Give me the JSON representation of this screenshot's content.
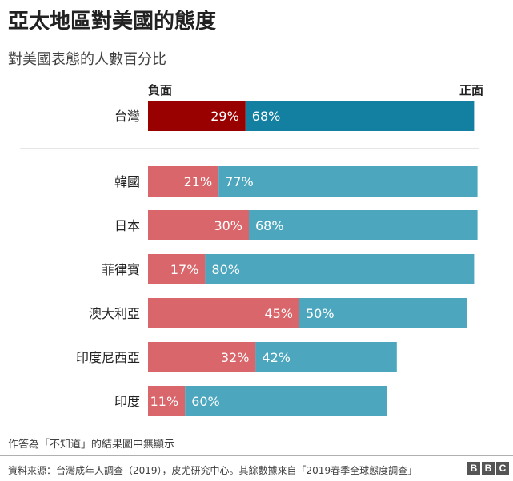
{
  "title": "亞太地區對美國的態度",
  "subtitle": "對美國表態的人數百分比",
  "note": "作答為「不知道」的結果圖中無顯示",
  "source": "資料來源：台灣成年人調查（2019），皮尤研究中心。其餘數據來自「2019春季全球態度調查」",
  "logo": [
    "B",
    "B",
    "C"
  ],
  "colors": {
    "featured_negative": "#990000",
    "featured_positive": "#1380A1",
    "negative": "#D9666A",
    "positive": "#4BA6BE"
  },
  "chart_data": {
    "type": "bar",
    "orientation": "horizontal",
    "stacked": true,
    "header_labels": {
      "negative": "負面",
      "positive": "正面"
    },
    "series": [
      {
        "name": "負面",
        "key": "negative"
      },
      {
        "name": "正面",
        "key": "positive"
      }
    ],
    "featured": {
      "category": "台灣",
      "negative": 29,
      "positive": 68
    },
    "categories": [
      "韓國",
      "日本",
      "菲律賓",
      "澳大利亞",
      "印度尼西亞",
      "印度"
    ],
    "negative": [
      21,
      30,
      17,
      45,
      32,
      11
    ],
    "positive": [
      77,
      68,
      80,
      50,
      42,
      60
    ],
    "value_suffix": "%",
    "xlim": [
      0,
      100
    ]
  }
}
